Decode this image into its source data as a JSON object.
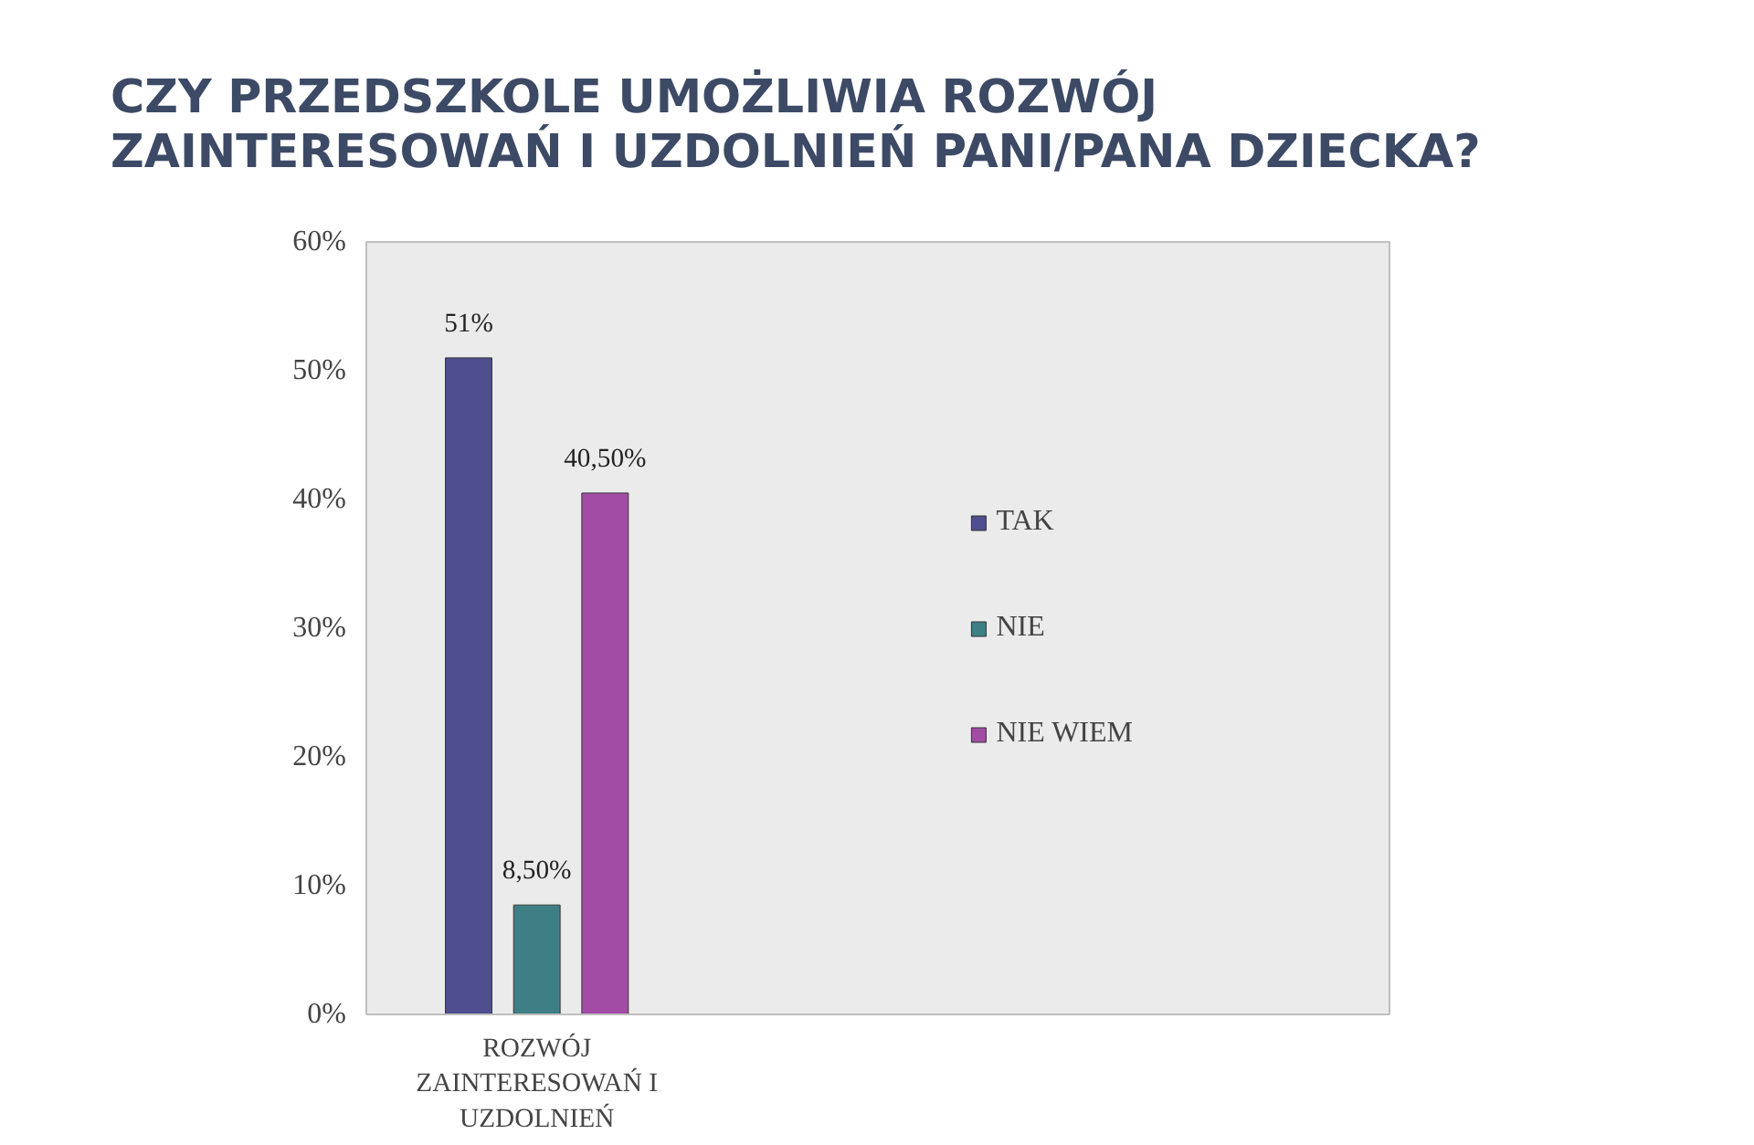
{
  "chart_data": {
    "type": "bar",
    "title": "CZY PRZEDSZKOLE UMOŻLIWIA ROZWÓJ ZAINTERESOWAŃ I UZDOLNIEŃ PANI/PANA DZIECKA?",
    "categories": [
      "ROZWÓJ ZAINTERESOWAŃ I UZDOLNIEŃ"
    ],
    "series": [
      {
        "name": "TAK",
        "color": "#4f4f8f",
        "values": [
          51
        ],
        "value_labels": [
          "51%"
        ]
      },
      {
        "name": "NIE",
        "color": "#3e7f86",
        "values": [
          8.5
        ],
        "value_labels": [
          "8,50%"
        ]
      },
      {
        "name": "NIE WIEM",
        "color": "#a24ca6",
        "values": [
          40.5
        ],
        "value_labels": [
          "40,50%"
        ]
      }
    ],
    "ylim": [
      0,
      60
    ],
    "yticks": [
      {
        "value": 0,
        "label": "0%"
      },
      {
        "value": 10,
        "label": "10%"
      },
      {
        "value": 20,
        "label": "20%"
      },
      {
        "value": 30,
        "label": "30%"
      },
      {
        "value": 40,
        "label": "40%"
      },
      {
        "value": 50,
        "label": "50%"
      },
      {
        "value": 60,
        "label": "60%"
      }
    ],
    "grid": false,
    "legend": "right"
  }
}
